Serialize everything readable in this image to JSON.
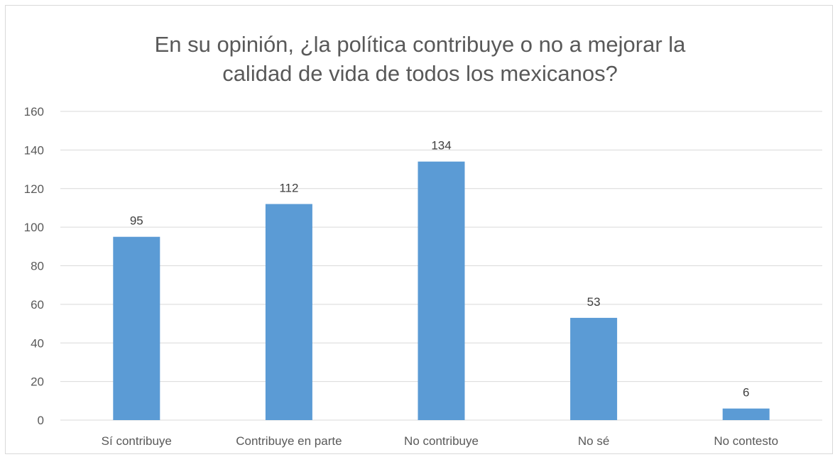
{
  "chart_data": {
    "type": "bar",
    "title_lines": [
      "En su opinión, ¿la política contribuye o no a mejorar la",
      "calidad de vida de todos los mexicanos?"
    ],
    "categories": [
      "Sí contribuye",
      "Contribuye en parte",
      "No contribuye",
      "No sé",
      "No contesto"
    ],
    "values": [
      95,
      112,
      134,
      53,
      6
    ],
    "data_labels": [
      "95",
      "112",
      "134",
      "53",
      "6"
    ],
    "y_ticks": [
      "0",
      "20",
      "40",
      "60",
      "80",
      "100",
      "120",
      "140",
      "160"
    ],
    "ylim": [
      0,
      160
    ],
    "xlabel": "",
    "ylabel": "",
    "grid": true,
    "legend": "none",
    "bar_color": "#5b9bd5",
    "grid_color": "#d9d9d9"
  }
}
